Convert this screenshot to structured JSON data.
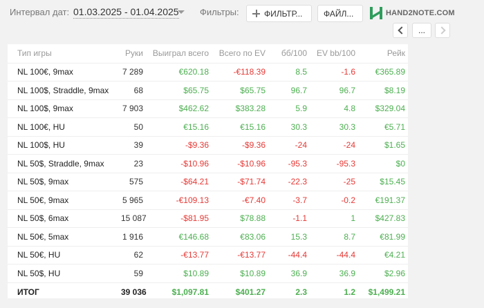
{
  "toolbar": {
    "interval_label": "Интервал дат:",
    "interval_value": "01.03.2025 - 01.04.2025",
    "filters_label": "Фильтры:",
    "filter_button": "ФИЛЬТР...",
    "file_button": "ФАЙЛ...",
    "logo_text": "HAND2NOTE.COM",
    "more_label": "..."
  },
  "colors": {
    "positive": "#4caf50",
    "negative": "#e53935",
    "logo": "#2e9d5b"
  },
  "table": {
    "headers": [
      "Тип игры",
      "Руки",
      "Выиграл всего",
      "Всего по EV",
      "бб/100",
      "EV bb/100",
      "Рейк"
    ],
    "rows": [
      [
        "NL 100€, 9max",
        "7 289",
        "€620.18",
        "-€118.39",
        "8.5",
        "-1.6",
        "€365.89"
      ],
      [
        "NL 100$, Straddle, 9max",
        "68",
        "$65.75",
        "$65.75",
        "96.7",
        "96.7",
        "$8.19"
      ],
      [
        "NL 100$, 9max",
        "7 903",
        "$462.62",
        "$383.28",
        "5.9",
        "4.8",
        "$329.04"
      ],
      [
        "NL 100€, HU",
        "50",
        "€15.16",
        "€15.16",
        "30.3",
        "30.3",
        "€5.71"
      ],
      [
        "NL 100$, HU",
        "39",
        "-$9.36",
        "-$9.36",
        "-24",
        "-24",
        "$1.65"
      ],
      [
        "NL 50$, Straddle, 9max",
        "23",
        "-$10.96",
        "-$10.96",
        "-95.3",
        "-95.3",
        "$0"
      ],
      [
        "NL 50$, 9max",
        "575",
        "-$64.21",
        "-$71.74",
        "-22.3",
        "-25",
        "$15.45"
      ],
      [
        "NL 50€, 9max",
        "5 965",
        "-€109.13",
        "-€7.40",
        "-3.7",
        "-0.2",
        "€191.37"
      ],
      [
        "NL 50$, 6max",
        "15 087",
        "-$81.95",
        "$78.88",
        "-1.1",
        "1",
        "$427.83"
      ],
      [
        "NL 50€, 5max",
        "1 916",
        "€146.68",
        "€83.06",
        "15.3",
        "8.7",
        "€81.99"
      ],
      [
        "NL 50€, HU",
        "62",
        "-€13.77",
        "-€13.77",
        "-44.4",
        "-44.4",
        "€4.21"
      ],
      [
        "NL 50$, HU",
        "59",
        "$10.89",
        "$10.89",
        "36.9",
        "36.9",
        "$2.96"
      ]
    ],
    "total": [
      "ИТОГ",
      "39 036",
      "$1,097.81",
      "$401.27",
      "2.3",
      "1.2",
      "$1,499.21"
    ]
  }
}
